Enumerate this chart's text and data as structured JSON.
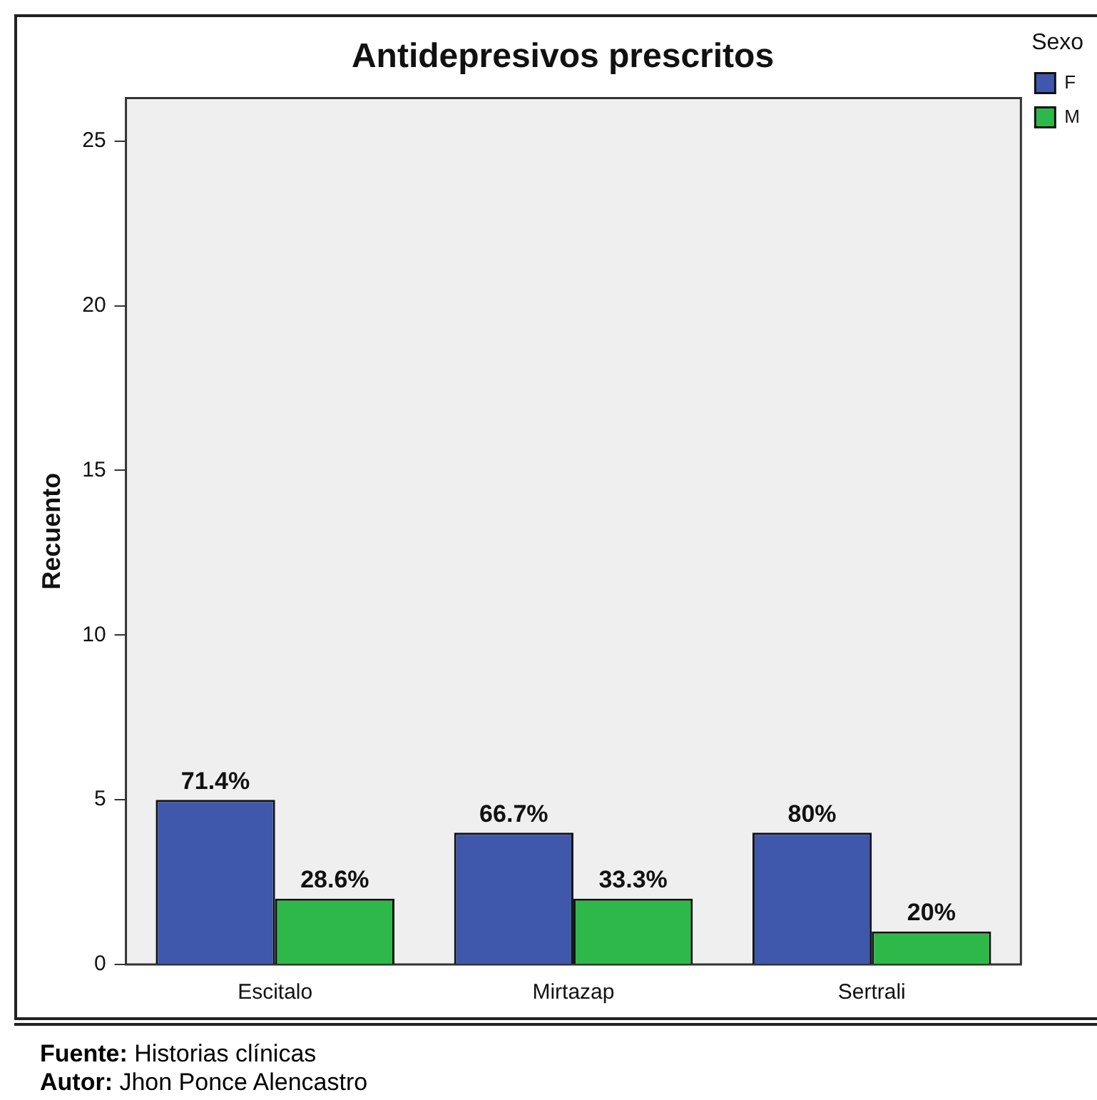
{
  "chart_data": {
    "type": "bar",
    "title": "Antidepresivos prescritos",
    "ylabel": "Recuento",
    "legend_title": "Sexo",
    "legend": "top right",
    "categories": [
      "Escitalo",
      "Mirtazap",
      "Sertrali"
    ],
    "series": [
      {
        "name": "F",
        "color": "#3f58ab",
        "values": [
          5,
          4,
          4
        ]
      },
      {
        "name": "M",
        "color": "#2fb84a",
        "values": [
          2,
          2,
          1
        ]
      }
    ],
    "ylim": [
      0,
      26.3
    ],
    "yticks": [
      0,
      5,
      10,
      15,
      20,
      25
    ],
    "grid": false,
    "annotations": [
      {
        "text": "71.4%",
        "x": "Escitalo",
        "y": 5
      },
      {
        "text": "28.6%",
        "x": "Escitalo",
        "y": 2
      },
      {
        "text": "66.7%",
        "x": "Mirtazap",
        "y": 4
      },
      {
        "text": "33.3%",
        "x": "Mirtazap",
        "y": 2
      },
      {
        "text": "80%",
        "x": "Sertrali",
        "y": 4
      },
      {
        "text": "20%",
        "x": "Sertrali",
        "y": 1
      },
      "Fuente: Historias clínicas",
      "Autor: Jhon Ponce Alencastro"
    ]
  }
}
